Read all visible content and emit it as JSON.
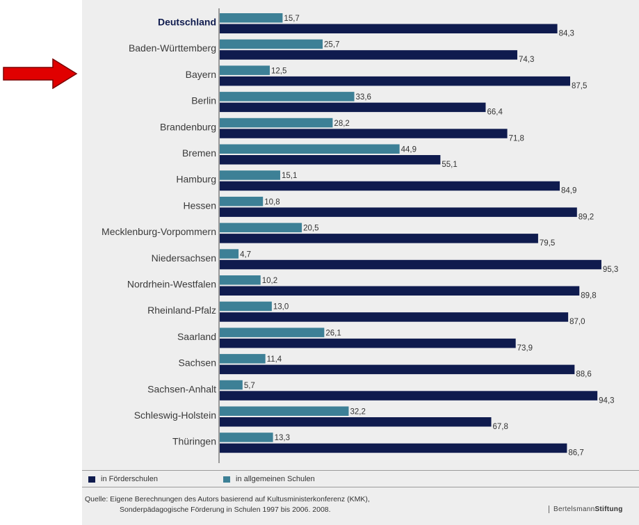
{
  "chart_data": {
    "type": "bar",
    "orientation": "horizontal",
    "categories": [
      "Deutschland",
      "Baden-Württemberg",
      "Bayern",
      "Berlin",
      "Brandenburg",
      "Bremen",
      "Hamburg",
      "Hessen",
      "Mecklenburg-Vorpommern",
      "Niedersachsen",
      "Nordrhein-Westfalen",
      "Rheinland-Pfalz",
      "Saarland",
      "Sachsen",
      "Sachsen-Anhalt",
      "Schleswig-Holstein",
      "Thüringen"
    ],
    "series": [
      {
        "name": "in allgemeinen Schulen",
        "color": "#3d8096",
        "values": [
          15.7,
          25.7,
          12.5,
          33.6,
          28.2,
          44.9,
          15.1,
          10.8,
          20.5,
          4.7,
          10.2,
          13.0,
          26.1,
          11.4,
          5.7,
          32.2,
          13.3
        ],
        "labels": [
          "15,7",
          "25,7",
          "12,5",
          "33,6",
          "28,2",
          "44,9",
          "15,1",
          "10,8",
          "20,5",
          "4,7",
          "10,2",
          "13,0",
          "26,1",
          "11,4",
          "5,7",
          "32,2",
          "13,3"
        ]
      },
      {
        "name": "in Förderschulen",
        "color": "#0f1b4e",
        "values": [
          84.3,
          74.3,
          87.5,
          66.4,
          71.8,
          55.1,
          84.9,
          89.2,
          79.5,
          95.3,
          89.8,
          87.0,
          73.9,
          88.6,
          94.3,
          67.8,
          86.7
        ],
        "labels": [
          "84,3",
          "74,3",
          "87,5",
          "66,4",
          "71,8",
          "55,1",
          "84,9",
          "89,2",
          "79,5",
          "95,3",
          "89,8",
          "87,0",
          "73,9",
          "88,6",
          "94,3",
          "67,8",
          "86,7"
        ]
      }
    ],
    "xlim": [
      0,
      100
    ],
    "bold_category": "Deutschland",
    "grid": false,
    "legend_position": "bottom-left"
  },
  "legend": {
    "foerder_label": "in Förderschulen",
    "allgemein_label": "in allgemeinen Schulen",
    "foerder_color": "#0f1b4e",
    "allgemein_color": "#3d8096"
  },
  "source": {
    "line1": "Quelle: Eigene Berechnungen des Autors basierend auf Kultusministerkonferenz (KMK),",
    "line2": "Sonderpädagogische Förderung in Schulen 1997 bis 2006. 2008."
  },
  "brand": {
    "part1": "Bertelsmann",
    "part2": "Stiftung"
  },
  "annotation": {
    "arrow_color": "#e00000",
    "arrow_target": "Bayern"
  }
}
